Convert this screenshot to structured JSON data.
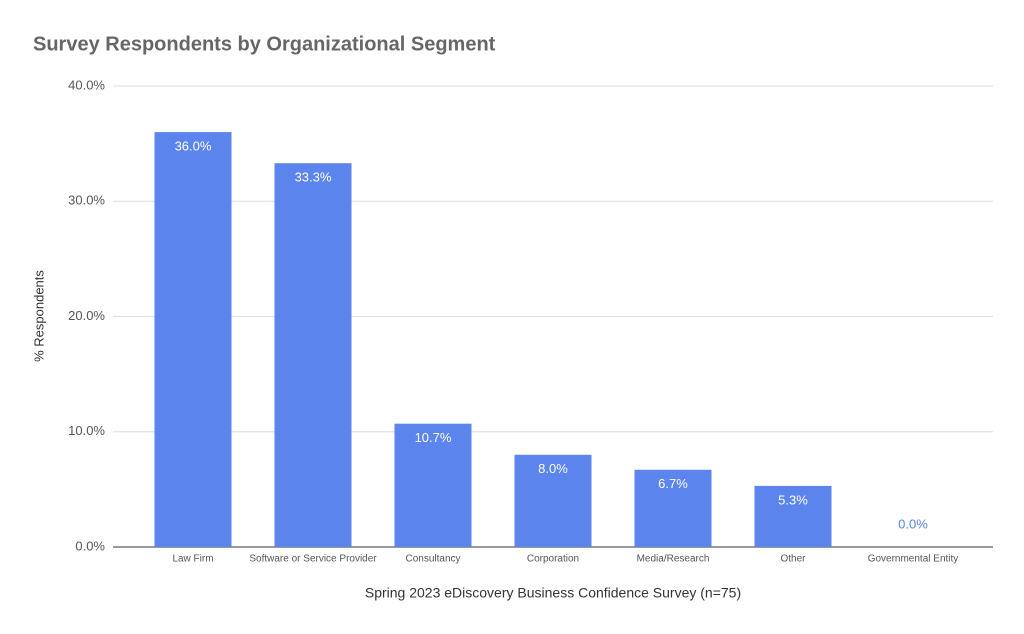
{
  "chart_data": {
    "type": "bar",
    "title": "Survey Respondents by Organizational Segment",
    "y_label": "% Respondents",
    "x_label": "Spring 2023 eDiscovery Business Confidence Survey (n=75)",
    "categories": [
      "Law Firm",
      "Software or Service Provider",
      "Consultancy",
      "Corporation",
      "Media/Research",
      "Other",
      "Governmental Entity"
    ],
    "values": [
      36.0,
      33.3,
      10.7,
      8.0,
      6.7,
      5.3,
      0.0
    ],
    "value_labels": [
      "36.0%",
      "33.3%",
      "10.7%",
      "8.0%",
      "6.7%",
      "5.3%",
      "0.0%"
    ],
    "color": "#5b84ec",
    "ylim": [
      0,
      40
    ],
    "yticks": [
      {
        "value": 0,
        "label": "0.0%"
      },
      {
        "value": 10,
        "label": "10.0%"
      },
      {
        "value": 20,
        "label": "20.0%"
      },
      {
        "value": 30,
        "label": "30.0%"
      },
      {
        "value": 40,
        "label": "40.0%"
      }
    ],
    "grid": true
  }
}
